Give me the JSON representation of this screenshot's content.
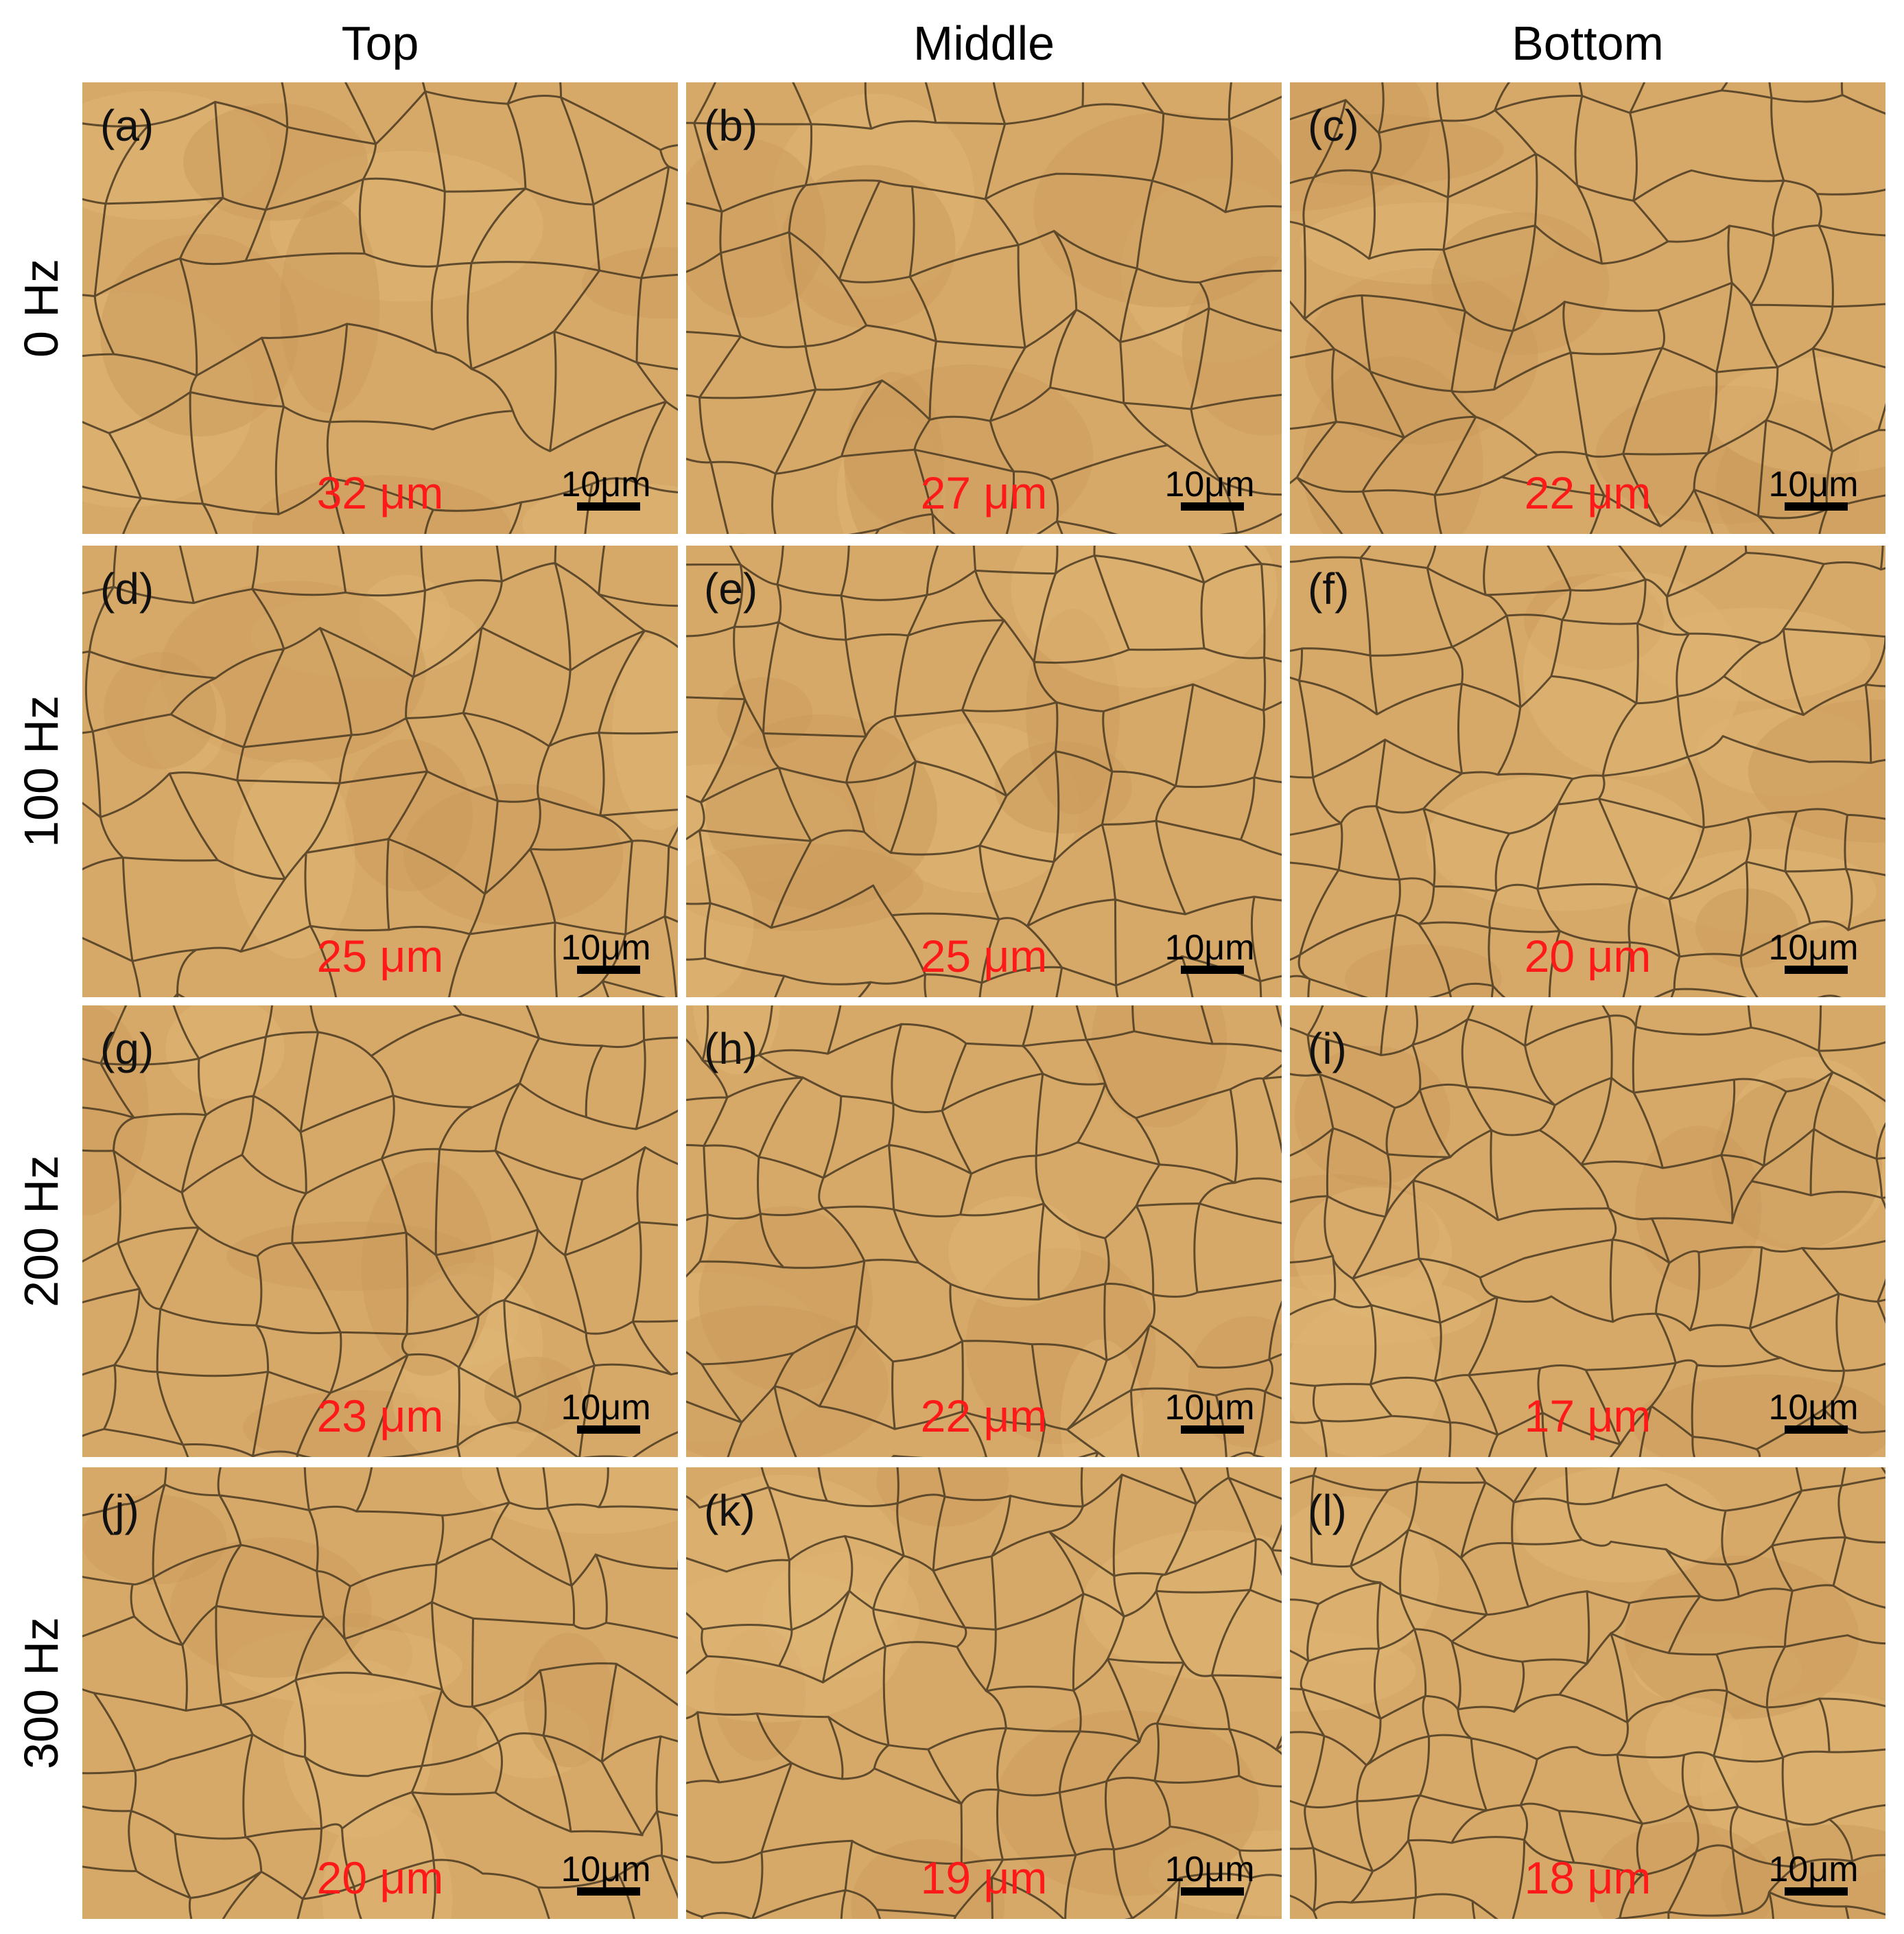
{
  "columns": [
    "Top",
    "Middle",
    "Bottom"
  ],
  "rows": [
    "0 Hz",
    "100 Hz",
    "200 Hz",
    "300 Hz"
  ],
  "scale_bar_label": "10μm",
  "colors": {
    "tissue": "#d7a968",
    "boundary": "#4a3a22",
    "grain_size_text": "#ff1a1a"
  },
  "panels": [
    {
      "label": "(a)",
      "grain_size": "32 μm"
    },
    {
      "label": "(b)",
      "grain_size": "27 μm"
    },
    {
      "label": "(c)",
      "grain_size": "22 μm"
    },
    {
      "label": "(d)",
      "grain_size": "25 μm"
    },
    {
      "label": "(e)",
      "grain_size": "25 μm"
    },
    {
      "label": "(f)",
      "grain_size": "20 μm"
    },
    {
      "label": "(g)",
      "grain_size": "23 μm"
    },
    {
      "label": "(h)",
      "grain_size": "22 μm"
    },
    {
      "label": "(i)",
      "grain_size": "17 μm"
    },
    {
      "label": "(j)",
      "grain_size": "20 μm"
    },
    {
      "label": "(k)",
      "grain_size": "19 μm"
    },
    {
      "label": "(l)",
      "grain_size": "18 μm"
    }
  ]
}
